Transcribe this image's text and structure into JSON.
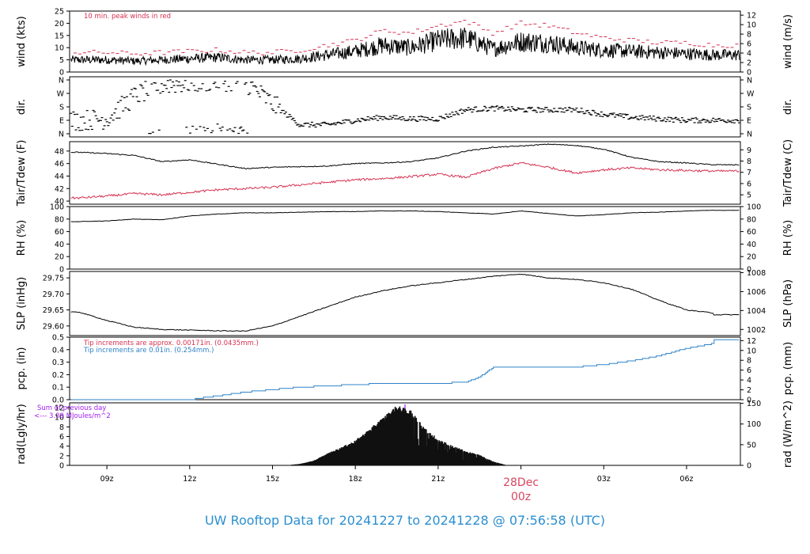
{
  "colors": {
    "axis": "#000000",
    "series": "#000000",
    "accent": "#d6304f",
    "blue": "#2f82c8",
    "purple": "#a020f0",
    "footer": "#2b8fd0",
    "date": "#d9455f"
  },
  "footer_text": "UW Rooftop Data for 20241227  to  20241228 @ 07:56:58  (UTC)",
  "time_axis": {
    "ticks": [
      "09z",
      "12z",
      "15z",
      "18z",
      "21z",
      "00z",
      "03z",
      "06z"
    ],
    "date_label": "28Dec",
    "date_tick": "00z"
  },
  "chart_data": [
    {
      "type": "line",
      "name": "wind",
      "ylabel": "wind (kts)",
      "ylabel_right": "wind (m/s)",
      "ylim": [
        0,
        25
      ],
      "yticks": [
        0,
        5,
        10,
        15,
        20,
        25
      ],
      "right_ylim": [
        0,
        12.86
      ],
      "right_ticks": [
        0,
        2,
        4,
        6,
        8,
        10,
        12
      ],
      "annotations": [
        "10 min. peak winds in red"
      ],
      "x": [
        "08z",
        "09z",
        "10z",
        "11z",
        "12z",
        "13z",
        "14z",
        "15z",
        "16z",
        "17z",
        "18z",
        "19z",
        "20z",
        "21z",
        "22z",
        "23z",
        "00z",
        "01z",
        "02z",
        "03z",
        "04z",
        "05z",
        "06z",
        "07z",
        "07:57z"
      ],
      "series": [
        {
          "name": "speed",
          "values": [
            5,
            5,
            4.5,
            5,
            5.5,
            6,
            5,
            5,
            5.5,
            7,
            8.5,
            11,
            10,
            13,
            14,
            9.5,
            12.5,
            12,
            10,
            9,
            8.5,
            8,
            7.5,
            7,
            7
          ]
        },
        {
          "name": "peak",
          "values": [
            8,
            8,
            7.5,
            8,
            8.5,
            9,
            8,
            8,
            9,
            11,
            13,
            17,
            16,
            19,
            21,
            16,
            20,
            19,
            16,
            14,
            13,
            12,
            12,
            11,
            11
          ]
        }
      ]
    },
    {
      "type": "scatter",
      "name": "dir",
      "ylabel": "dir.",
      "ylabel_right": "dir.",
      "yticks": [
        "N",
        "E",
        "S",
        "W",
        "N"
      ],
      "x": [
        "08z",
        "09z",
        "10z",
        "11z",
        "12z",
        "13z",
        "14z",
        "15z",
        "16z",
        "17z",
        "18z",
        "19z",
        "20z",
        "21z",
        "22z",
        "23z",
        "00z",
        "01z",
        "02z",
        "03z",
        "04z",
        "05z",
        "06z",
        "07z",
        "07:57z"
      ],
      "values": [
        90,
        100,
        250,
        330,
        340,
        355,
        350,
        200,
        60,
        60,
        90,
        110,
        100,
        100,
        160,
        170,
        160,
        160,
        160,
        130,
        110,
        100,
        90,
        90,
        90
      ]
    },
    {
      "type": "line",
      "name": "temp",
      "ylabel": "Tair/Tdew (F)",
      "ylabel_right": "Tair/Tdew (C)",
      "ylim": [
        39.5,
        49.5
      ],
      "yticks": [
        40,
        42,
        44,
        46,
        48
      ],
      "right_ticks": [
        5,
        6,
        7,
        8,
        9
      ],
      "x": [
        "08z",
        "09z",
        "10z",
        "11z",
        "12z",
        "13z",
        "14z",
        "15z",
        "16z",
        "17z",
        "18z",
        "19z",
        "20z",
        "21z",
        "22z",
        "23z",
        "00z",
        "01z",
        "02z",
        "03z",
        "04z",
        "05z",
        "06z",
        "07z",
        "07:57z"
      ],
      "series": [
        {
          "name": "Tair",
          "values": [
            47.8,
            47.6,
            47.3,
            46.3,
            46.6,
            45.9,
            45.2,
            45.4,
            45.5,
            45.6,
            46.0,
            46.1,
            46.3,
            46.9,
            48.0,
            48.6,
            48.8,
            49.1,
            48.9,
            48.3,
            47.0,
            46.3,
            46.1,
            45.8,
            45.8
          ]
        },
        {
          "name": "Tdew",
          "values": [
            40.5,
            40.8,
            41.2,
            41.0,
            41.4,
            41.8,
            42.0,
            42.2,
            42.6,
            43.0,
            43.4,
            43.6,
            43.9,
            44.3,
            43.8,
            45.2,
            46.1,
            45.4,
            44.5,
            45.0,
            45.3,
            45.0,
            44.9,
            44.8,
            44.8
          ]
        }
      ]
    },
    {
      "type": "line",
      "name": "rh",
      "ylabel": "RH (%)",
      "ylabel_right": "RH (%)",
      "ylim": [
        0,
        100
      ],
      "yticks": [
        0,
        20,
        40,
        60,
        80,
        100
      ],
      "x": [
        "08z",
        "09z",
        "10z",
        "11z",
        "12z",
        "13z",
        "14z",
        "15z",
        "16z",
        "17z",
        "18z",
        "19z",
        "20z",
        "21z",
        "22z",
        "23z",
        "00z",
        "01z",
        "02z",
        "03z",
        "04z",
        "05z",
        "06z",
        "07z",
        "07:57z"
      ],
      "values": [
        76,
        77,
        80,
        79,
        85,
        88,
        90,
        90,
        91,
        92,
        92,
        93,
        93,
        92,
        90,
        88,
        93,
        89,
        85,
        87,
        90,
        91,
        93,
        94,
        94
      ]
    },
    {
      "type": "line",
      "name": "slp",
      "ylabel": "SLP (inHg)",
      "ylabel_right": "SLP (hPa)",
      "ylim": [
        29.57,
        29.77
      ],
      "yticks": [
        29.6,
        29.65,
        29.7,
        29.75
      ],
      "ytick_labels": [
        "29.60",
        "29.65",
        "29.70",
        "29.75"
      ],
      "right_ticks": [
        1002,
        1004,
        1006,
        1008
      ],
      "x": [
        "08z",
        "09z",
        "10z",
        "11z",
        "12z",
        "13z",
        "14z",
        "15z",
        "16z",
        "17z",
        "18z",
        "19z",
        "20z",
        "21z",
        "22z",
        "23z",
        "00z",
        "01z",
        "02z",
        "03z",
        "04z",
        "05z",
        "06z",
        "07z",
        "07:57z"
      ],
      "values": [
        29.643,
        29.617,
        29.596,
        29.589,
        29.587,
        29.585,
        29.584,
        29.6,
        29.63,
        29.66,
        29.69,
        29.71,
        29.725,
        29.735,
        29.745,
        29.755,
        29.762,
        29.75,
        29.745,
        29.735,
        29.715,
        29.68,
        29.65,
        29.64,
        29.635
      ]
    },
    {
      "type": "line",
      "name": "pcp",
      "ylabel": "pcp. (in)",
      "ylabel_right": "pcp. (mm)",
      "ylim": [
        0,
        0.5
      ],
      "yticks": [
        0,
        0.1,
        0.2,
        0.3,
        0.4,
        0.5
      ],
      "ytick_labels": [
        "0.0",
        "0.1",
        "0.2",
        "0.3",
        "0.4",
        "0.5"
      ],
      "right_ticks": [
        0,
        2,
        4,
        6,
        8,
        10,
        12
      ],
      "annotations": [
        "Tip increments are approx. 0.00171in. (0.0435mm.)",
        "Tip increments are 0.01in. (0.254mm.)"
      ],
      "x": [
        "08z",
        "09z",
        "10z",
        "11z",
        "12z",
        "13z",
        "14z",
        "15z",
        "16z",
        "17z",
        "18z",
        "19z",
        "20z",
        "21z",
        "22z",
        "22:30z",
        "23z",
        "00z",
        "01z",
        "02z",
        "03z",
        "04z",
        "05z",
        "06z",
        "07z",
        "07:57z"
      ],
      "values": [
        0,
        0,
        0,
        0,
        0,
        0.03,
        0.06,
        0.08,
        0.1,
        0.11,
        0.12,
        0.13,
        0.13,
        0.13,
        0.14,
        0.18,
        0.26,
        0.26,
        0.26,
        0.26,
        0.28,
        0.31,
        0.35,
        0.41,
        0.45,
        0.48
      ]
    },
    {
      "type": "area",
      "name": "rad",
      "ylabel": "rad(Lgly/hr)",
      "ylabel_right": "rad (W/m^2)",
      "ylim": [
        0,
        13
      ],
      "yticks": [
        0,
        2,
        4,
        6,
        8,
        10,
        12
      ],
      "right_ticks": [
        0,
        50,
        100,
        150
      ],
      "annotations": [
        "Sum of previous day",
        "<--- 3.09 MJoules/m^2"
      ],
      "x": [
        "15:30z",
        "16z",
        "16:30z",
        "17z",
        "17:30z",
        "18z",
        "18:30z",
        "19z",
        "19:30z",
        "20z",
        "20:30z",
        "21z",
        "21:30z",
        "22z",
        "22:30z",
        "23z",
        "23:30z"
      ],
      "values": [
        0,
        0.3,
        1,
        2.5,
        3.8,
        5.2,
        7.5,
        10,
        12.5,
        11.5,
        8,
        5.5,
        4.2,
        3,
        2.2,
        0.8,
        0
      ]
    }
  ]
}
